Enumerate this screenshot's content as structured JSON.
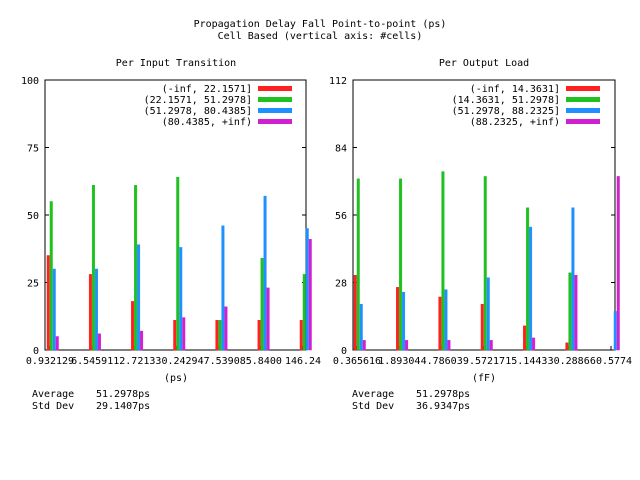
{
  "title_line1": "Propagation Delay Fall Point-to-point (ps)",
  "title_line2": "Cell Based (vertical axis: #cells)",
  "colors": [
    "#ff2020",
    "#20c020",
    "#2090ff",
    "#d020d0"
  ],
  "chart_data": [
    {
      "type": "bar",
      "title": "Per Input Transition",
      "xlabel": "(ps)",
      "ylabel": "#cells",
      "ylim": [
        0,
        100
      ],
      "yticks": [
        "0",
        "25",
        "50",
        "75",
        "100"
      ],
      "categories": [
        "0.932129",
        "6.54591",
        "12.7213",
        "30.2429",
        "47.5390",
        "85.8400",
        "146.24"
      ],
      "series": [
        {
          "name": "(-inf, 22.1571]",
          "values": [
            35,
            28,
            18,
            11,
            11,
            11,
            11
          ]
        },
        {
          "name": "(22.1571, 51.2978]",
          "values": [
            55,
            61,
            61,
            64,
            11,
            34,
            28
          ]
        },
        {
          "name": "(51.2978, 80.4385]",
          "values": [
            30,
            30,
            39,
            38,
            46,
            57,
            45
          ]
        },
        {
          "name": "(80.4385, +inf)",
          "values": [
            5,
            6,
            7,
            12,
            16,
            23,
            41
          ]
        }
      ],
      "legend_position": "top-right",
      "stats": {
        "average_label": "Average",
        "average_value": "51.2978ps",
        "std_label": "Std Dev",
        "std_value": "29.1407ps"
      }
    },
    {
      "type": "bar",
      "title": "Per Output Load",
      "xlabel": "(fF)",
      "ylabel": "#cells",
      "ylim": [
        0,
        112
      ],
      "yticks": [
        "0",
        "28",
        "56",
        "84",
        "112"
      ],
      "categories": [
        "0.365616",
        "1.89304",
        "4.78603",
        "9.57217",
        "15.1443",
        "30.2886",
        "60.5774"
      ],
      "series": [
        {
          "name": "(-inf, 14.3631]",
          "values": [
            31,
            26,
            22,
            19,
            10,
            3,
            0
          ]
        },
        {
          "name": "(14.3631, 51.2978]",
          "values": [
            71,
            71,
            74,
            72,
            59,
            32,
            0
          ]
        },
        {
          "name": "(51.2978, 88.2325]",
          "values": [
            19,
            24,
            25,
            30,
            51,
            59,
            16
          ]
        },
        {
          "name": "(88.2325, +inf)",
          "values": [
            4,
            4,
            4,
            4,
            5,
            31,
            72
          ]
        }
      ],
      "legend_position": "top-right",
      "stats": {
        "average_label": "Average",
        "average_value": "51.2978ps",
        "std_label": "Std Dev",
        "std_value": "36.9347ps"
      }
    }
  ]
}
